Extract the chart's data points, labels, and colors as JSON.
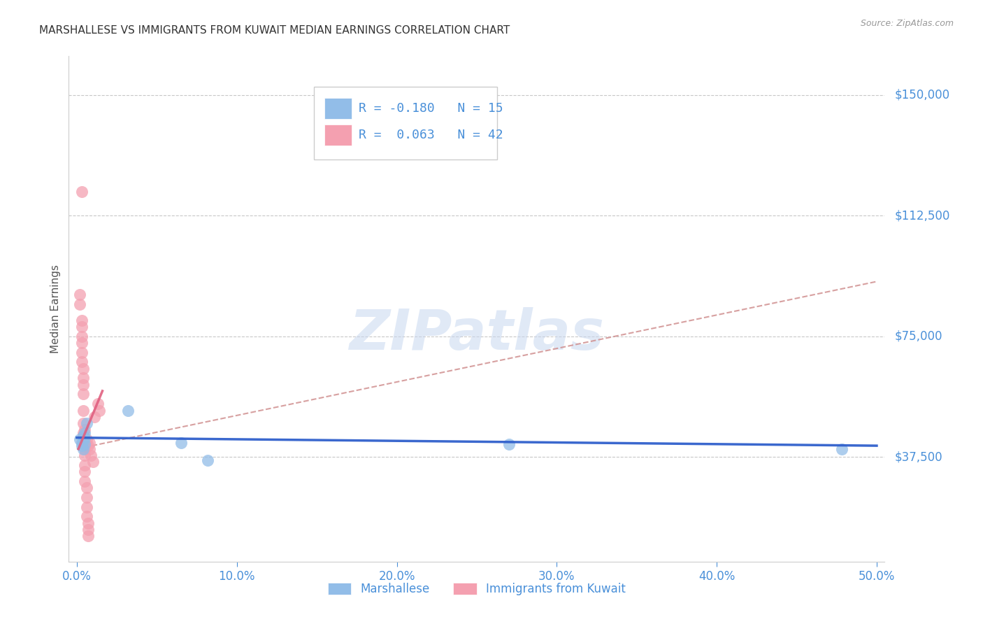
{
  "title": "MARSHALLESE VS IMMIGRANTS FROM KUWAIT MEDIAN EARNINGS CORRELATION CHART",
  "source": "Source: ZipAtlas.com",
  "ylabel_label": "Median Earnings",
  "x_tick_labels": [
    "0.0%",
    "10.0%",
    "20.0%",
    "30.0%",
    "40.0%",
    "50.0%"
  ],
  "x_tick_values": [
    0.0,
    0.1,
    0.2,
    0.3,
    0.4,
    0.5
  ],
  "y_tick_labels": [
    "$37,500",
    "$75,000",
    "$112,500",
    "$150,000"
  ],
  "y_tick_values": [
    37500,
    75000,
    112500,
    150000
  ],
  "xlim": [
    -0.005,
    0.505
  ],
  "ylim": [
    5000,
    162000
  ],
  "blue_R": -0.18,
  "blue_N": 15,
  "pink_R": 0.063,
  "pink_N": 42,
  "blue_color": "#92BDE8",
  "pink_color": "#F4A0B0",
  "blue_line_color": "#3060CC",
  "pink_line_color": "#E06080",
  "pink_dashed_color": "#D09090",
  "watermark_color": "#C8D8F0",
  "watermark": "ZIPatlas",
  "legend_label_blue": "Marshallese",
  "legend_label_pink": "Immigrants from Kuwait",
  "blue_scatter_x": [
    0.002,
    0.003,
    0.004,
    0.004,
    0.005,
    0.003,
    0.004,
    0.005,
    0.005,
    0.006,
    0.032,
    0.065,
    0.082,
    0.27,
    0.478
  ],
  "blue_scatter_y": [
    43000,
    42000,
    44000,
    42500,
    45000,
    41000,
    40000,
    43500,
    41500,
    48000,
    52000,
    42000,
    36500,
    41500,
    40000
  ],
  "pink_scatter_x": [
    0.002,
    0.002,
    0.003,
    0.003,
    0.003,
    0.003,
    0.003,
    0.003,
    0.004,
    0.004,
    0.004,
    0.004,
    0.004,
    0.004,
    0.004,
    0.004,
    0.005,
    0.005,
    0.005,
    0.005,
    0.005,
    0.005,
    0.005,
    0.006,
    0.006,
    0.006,
    0.006,
    0.007,
    0.007,
    0.007,
    0.008,
    0.008,
    0.009,
    0.01,
    0.011,
    0.013,
    0.014,
    0.003,
    0.004,
    0.005,
    0.006,
    0.007
  ],
  "pink_scatter_y": [
    88000,
    85000,
    80000,
    78000,
    75000,
    73000,
    70000,
    67000,
    65000,
    62000,
    60000,
    57000,
    52000,
    48000,
    45000,
    44000,
    43000,
    42000,
    40000,
    38000,
    35000,
    33000,
    30000,
    28000,
    25000,
    22000,
    19000,
    17000,
    15000,
    13000,
    42000,
    40000,
    38000,
    36000,
    50000,
    54000,
    52000,
    120000,
    44000,
    46000,
    43000,
    41000
  ],
  "blue_trend_x": [
    0.0,
    0.5
  ],
  "blue_trend_y": [
    43500,
    41000
  ],
  "pink_solid_trend_x": [
    0.001,
    0.016
  ],
  "pink_solid_trend_y": [
    40000,
    58000
  ],
  "pink_dashed_trend_x": [
    0.0,
    0.5
  ],
  "pink_dashed_trend_y": [
    40000,
    92000
  ]
}
